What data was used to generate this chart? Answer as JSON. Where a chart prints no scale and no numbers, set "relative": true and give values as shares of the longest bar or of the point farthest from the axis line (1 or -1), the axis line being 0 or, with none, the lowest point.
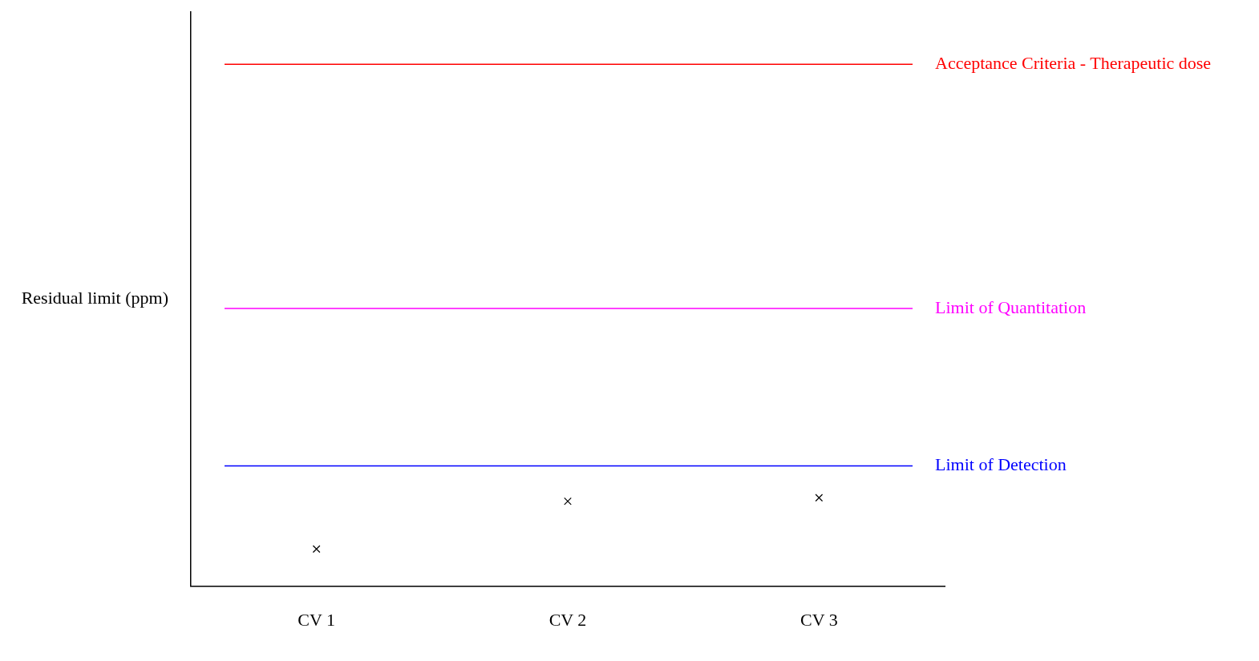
{
  "chart_data": {
    "type": "scatter",
    "annotations": [
      "Residual limit (ppm)"
    ],
    "categories": [
      "CV 1",
      "CV 2",
      "CV 3"
    ],
    "relative": true,
    "marker": "cross",
    "grid": false,
    "legend": false,
    "series": [
      {
        "color": "#000000",
        "values": [
          0.42,
          0.96,
          1
        ]
      }
    ],
    "ref_lines": [
      {
        "axis": "y",
        "value": 5.9,
        "label": "Acceptance Criteria - Therapeutic dose",
        "color": "#ff0000"
      },
      {
        "axis": "y",
        "value": 3.14,
        "label": "Limit of Quantitation",
        "color": "#ff00ff"
      },
      {
        "axis": "y",
        "value": 1.36,
        "label": "Limit of Detection",
        "color": "#0000ff"
      }
    ]
  }
}
